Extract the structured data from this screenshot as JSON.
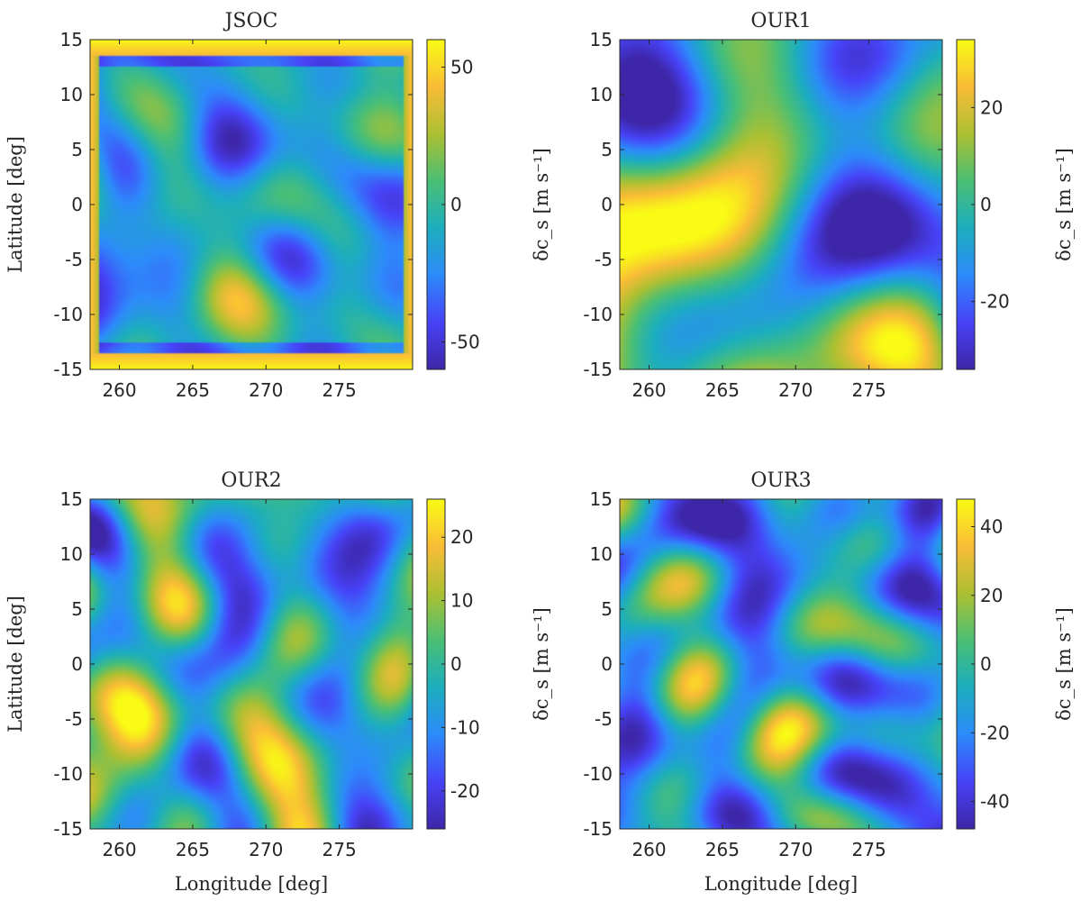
{
  "figure": {
    "x_label": "Longitude [deg]",
    "y_label": "Latitude [deg]",
    "colorbar_label": "δc_s [m s⁻¹]"
  },
  "colormap": [
    "#3e26a8",
    "#4743f8",
    "#2d8bfa",
    "#1caebe",
    "#4abf75",
    "#acc032",
    "#f9bc37",
    "#f9fb15"
  ],
  "chart_data": [
    {
      "type": "heatmap",
      "title": "JSOC",
      "xlabel": "",
      "ylabel": "Latitude [deg]",
      "xlim": [
        258,
        280
      ],
      "ylim": [
        -15,
        15
      ],
      "x_ticks": [
        260,
        265,
        270,
        275
      ],
      "y_ticks": [
        -15,
        -10,
        -5,
        0,
        5,
        10,
        15
      ],
      "colorbar": {
        "range": [
          -60,
          60
        ],
        "ticks": [
          -50,
          0,
          50
        ],
        "label": "δc_s [m s⁻¹]"
      },
      "pattern": {
        "seed": 11,
        "amplitude": 0.55,
        "edge_bright": true
      }
    },
    {
      "type": "heatmap",
      "title": "OUR1",
      "xlabel": "",
      "ylabel": "",
      "xlim": [
        258,
        280
      ],
      "ylim": [
        -15,
        15
      ],
      "x_ticks": [
        260,
        265,
        270,
        275
      ],
      "y_ticks": [
        -15,
        -10,
        -5,
        0,
        5,
        10,
        15
      ],
      "colorbar": {
        "range": [
          -34,
          34
        ],
        "ticks": [
          -20,
          0,
          20
        ],
        "label": "δc_s [m s⁻¹]"
      },
      "pattern": {
        "seed": 23,
        "amplitude": 0.75,
        "smooth": true,
        "gradient": -0.45
      }
    },
    {
      "type": "heatmap",
      "title": "OUR2",
      "xlabel": "Longitude [deg]",
      "ylabel": "Latitude [deg]",
      "xlim": [
        258,
        280
      ],
      "ylim": [
        -15,
        15
      ],
      "x_ticks": [
        260,
        265,
        270,
        275
      ],
      "y_ticks": [
        -15,
        -10,
        -5,
        0,
        5,
        10,
        15
      ],
      "colorbar": {
        "range": [
          -26,
          26
        ],
        "ticks": [
          -20,
          -10,
          0,
          10,
          20
        ],
        "label": "δc_s [m s⁻¹]"
      },
      "pattern": {
        "seed": 37,
        "amplitude": 0.7,
        "gradient": -0.3
      }
    },
    {
      "type": "heatmap",
      "title": "OUR3",
      "xlabel": "Longitude [deg]",
      "ylabel": "",
      "xlim": [
        258,
        280
      ],
      "ylim": [
        -15,
        15
      ],
      "x_ticks": [
        260,
        265,
        270,
        275
      ],
      "y_ticks": [
        -15,
        -10,
        -5,
        0,
        5,
        10,
        15
      ],
      "colorbar": {
        "range": [
          -48,
          48
        ],
        "ticks": [
          -40,
          -20,
          0,
          20,
          40
        ],
        "label": "δc_s [m s⁻¹]"
      },
      "pattern": {
        "seed": 53,
        "amplitude": 0.7
      }
    }
  ]
}
